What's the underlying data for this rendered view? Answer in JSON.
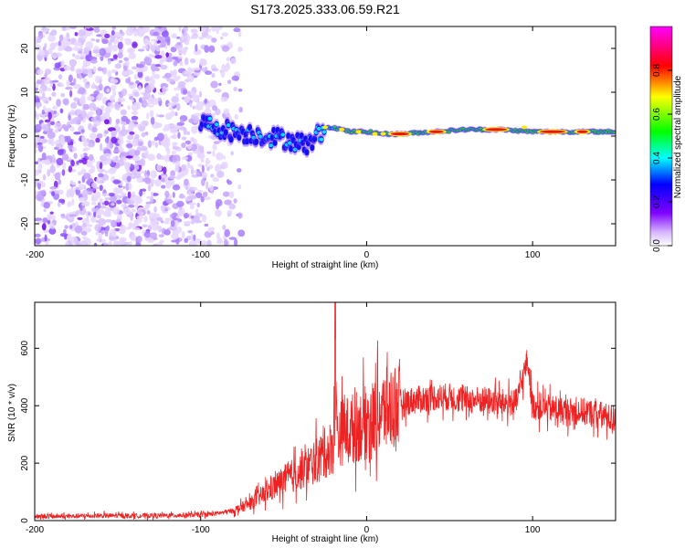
{
  "title": "S173.2025.333.06.59.R21",
  "chart_data": [
    {
      "type": "heatmap",
      "xlabel": "Height of straight line (km)",
      "ylabel": "Frequency (Hz)",
      "xlim": [
        -200,
        150
      ],
      "ylim": [
        -25,
        25
      ],
      "xticks": [
        -200,
        -100,
        0,
        100
      ],
      "yticks": [
        -20,
        -10,
        0,
        10,
        20
      ],
      "colorbar": {
        "label": "Normalized spectral amplitude",
        "range": [
          0,
          1
        ],
        "ticks": [
          "0.0",
          "0.2",
          "0.4",
          "0.6",
          "0.8"
        ]
      },
      "ridge": {
        "description_points_x": [
          -100,
          -80,
          -60,
          -45,
          -35,
          -25,
          -20,
          -10,
          0,
          10,
          20,
          40,
          60,
          80,
          100,
          120,
          150
        ],
        "frequency_y": [
          3,
          1,
          0,
          -1,
          -2,
          2,
          2,
          1,
          1,
          0.5,
          0.5,
          1,
          1.5,
          1.5,
          1,
          1,
          1
        ]
      }
    },
    {
      "type": "line",
      "xlabel": "Height of straight line (km)",
      "ylabel": "SNR (10 * v/v)",
      "xlim": [
        -200,
        150
      ],
      "ylim": [
        0,
        760
      ],
      "xticks": [
        -200,
        -100,
        0,
        100
      ],
      "yticks": [
        0,
        200,
        400,
        600
      ],
      "series": [
        {
          "name": "SNR",
          "color": "#ee2222",
          "x": [
            -200,
            -180,
            -160,
            -140,
            -120,
            -100,
            -90,
            -80,
            -70,
            -60,
            -50,
            -40,
            -30,
            -20,
            -19,
            -18,
            -10,
            0,
            10,
            20,
            30,
            40,
            50,
            60,
            70,
            80,
            90,
            97,
            100,
            110,
            120,
            130,
            140,
            150
          ],
          "y": [
            15,
            15,
            17,
            17,
            18,
            20,
            25,
            35,
            60,
            100,
            140,
            170,
            210,
            260,
            760,
            300,
            320,
            340,
            380,
            410,
            420,
            430,
            430,
            420,
            420,
            410,
            410,
            560,
            400,
            390,
            380,
            380,
            370,
            350
          ]
        }
      ]
    }
  ]
}
